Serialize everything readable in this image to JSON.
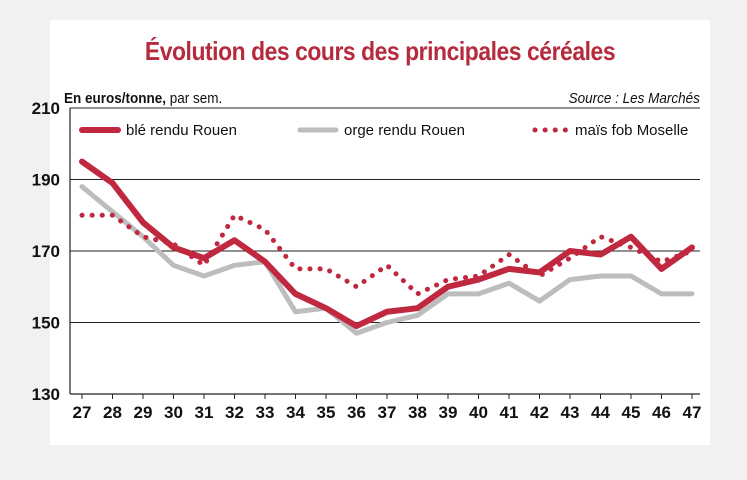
{
  "chart_data": {
    "type": "line",
    "title": "Évolution des cours des principales céréales",
    "unit_label": "En euros/tonne,",
    "unit_suffix": "par sem.",
    "source": "Source : Les Marchés",
    "x": [
      "27",
      "28",
      "29",
      "30",
      "31",
      "32",
      "33",
      "34",
      "35",
      "36",
      "37",
      "38",
      "39",
      "40",
      "41",
      "42",
      "43",
      "44",
      "45",
      "46",
      "47"
    ],
    "ylim": [
      130,
      210
    ],
    "yticks": [
      130,
      150,
      170,
      190,
      210
    ],
    "grid": true,
    "legend_position": "top",
    "series": [
      {
        "name": "blé rendu Rouen",
        "style": "solid-thick",
        "color": "#c0283f",
        "values": [
          195,
          189,
          178,
          171,
          168,
          173,
          167,
          158,
          154,
          149,
          153,
          154,
          160,
          162,
          165,
          164,
          170,
          169,
          174,
          165,
          171
        ]
      },
      {
        "name": "orge rendu Rouen",
        "style": "solid",
        "color": "#bdbdbd",
        "values": [
          188,
          181,
          174,
          166,
          163,
          166,
          167,
          153,
          154,
          147,
          150,
          152,
          158,
          158,
          161,
          156,
          162,
          163,
          163,
          158,
          158
        ]
      },
      {
        "name": "maïs fob Moselle",
        "style": "dotted",
        "color": "#c0283f",
        "values": [
          180,
          180,
          174,
          172,
          166,
          180,
          176,
          165,
          165,
          160,
          166,
          158,
          162,
          163,
          169,
          163,
          168,
          174,
          171,
          167,
          170
        ]
      }
    ]
  }
}
